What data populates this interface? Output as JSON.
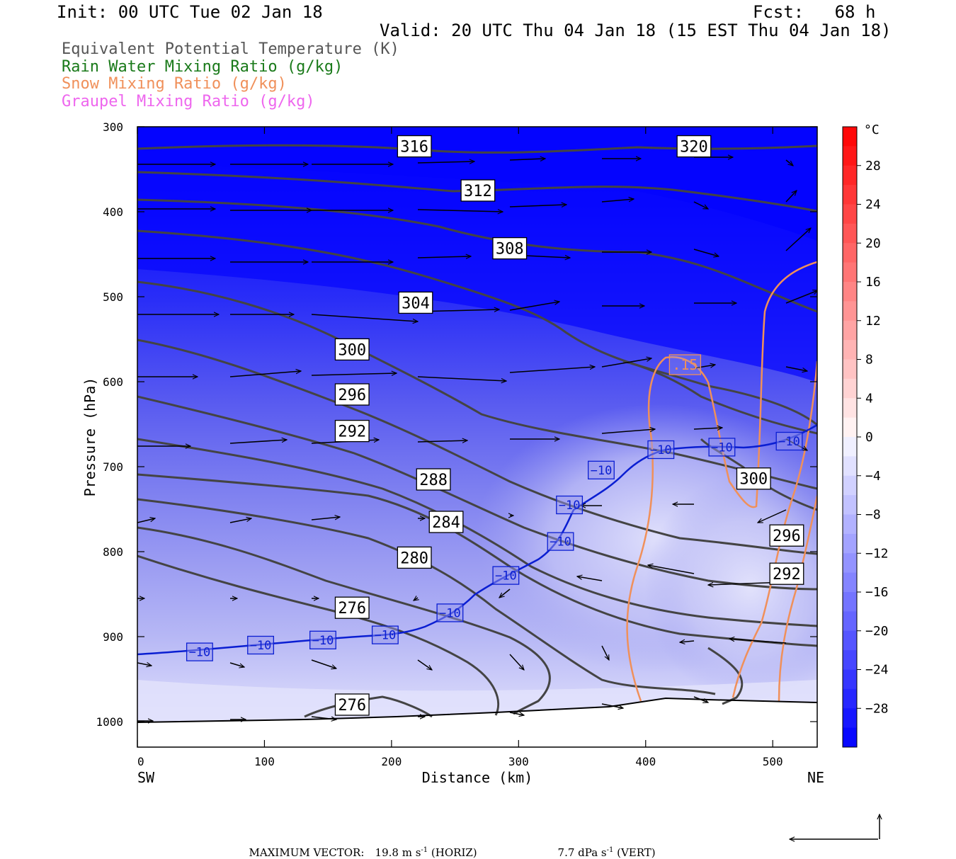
{
  "header": {
    "init": "Init: 00 UTC Tue 02 Jan 18",
    "fcst": "Fcst:   68 h",
    "valid": "Valid: 20 UTC Thu 04 Jan 18 (15 EST Thu 04 Jan 18)"
  },
  "legend": [
    {
      "text": "Equivalent Potential Temperature (K)",
      "color": "#555555"
    },
    {
      "text": "Rain Water Mixing Ratio (g/kg)",
      "color": "#1a7a1a"
    },
    {
      "text": "Snow Mixing Ratio (g/kg)",
      "color": "#f0905a"
    },
    {
      "text": "Graupel Mixing Ratio (g/kg)",
      "color": "#ee66ee"
    }
  ],
  "colors": {
    "theta_e": "#444444",
    "isotherm": "#0a1ed2",
    "snow": "#f0905a",
    "fill_cold": "#0000ff",
    "fill_mild": "#f4f4ff"
  },
  "chart_data": {
    "type": "contour",
    "xlabel": "Distance (km)",
    "ylabel": "Pressure (hPa)",
    "xlim": [
      0,
      535
    ],
    "ylim": [
      1030,
      300
    ],
    "x_ticks": [
      "0",
      "100",
      "200",
      "300",
      "400",
      "500"
    ],
    "y_ticks": [
      "300",
      "400",
      "500",
      "600",
      "700",
      "800",
      "900",
      "1000"
    ],
    "x_end_labels": {
      "left": "SW",
      "right": "NE"
    },
    "colorbar": {
      "unit": "°C",
      "tick_labels": [
        "28",
        "24",
        "20",
        "16",
        "12",
        "8",
        "4",
        "0",
        "-4",
        "-8",
        "-12",
        "-16",
        "-20",
        "-24",
        "-28"
      ],
      "range": [
        -32,
        32
      ],
      "step": 2
    },
    "theta_e_labels": [
      {
        "text": "316",
        "x": 218,
        "p": 323
      },
      {
        "text": "320",
        "x": 438,
        "p": 323
      },
      {
        "text": "312",
        "x": 268,
        "p": 375
      },
      {
        "text": "308",
        "x": 293,
        "p": 443
      },
      {
        "text": "304",
        "x": 219,
        "p": 507
      },
      {
        "text": "300",
        "x": 169,
        "p": 562
      },
      {
        "text": "296",
        "x": 169,
        "p": 615
      },
      {
        "text": "292",
        "x": 169,
        "p": 658
      },
      {
        "text": "288",
        "x": 233,
        "p": 715
      },
      {
        "text": "284",
        "x": 243,
        "p": 765
      },
      {
        "text": "280",
        "x": 218,
        "p": 807
      },
      {
        "text": "276",
        "x": 169,
        "p": 866
      },
      {
        "text": "276",
        "x": 169,
        "p": 980
      },
      {
        "text": "300",
        "x": 485,
        "p": 714
      },
      {
        "text": "296",
        "x": 511,
        "p": 781
      },
      {
        "text": "292",
        "x": 511,
        "p": 826
      }
    ],
    "isotherm_labels": [
      {
        "text": "−10",
        "x": 49,
        "p": 918
      },
      {
        "text": "−10",
        "x": 97,
        "p": 910
      },
      {
        "text": "−10",
        "x": 146,
        "p": 904
      },
      {
        "text": "−10",
        "x": 195,
        "p": 898
      },
      {
        "text": "−10",
        "x": 246,
        "p": 872
      },
      {
        "text": "−10",
        "x": 290,
        "p": 828
      },
      {
        "text": "−10",
        "x": 333,
        "p": 788
      },
      {
        "text": "−10",
        "x": 340,
        "p": 745
      },
      {
        "text": "−10",
        "x": 365,
        "p": 704
      },
      {
        "text": "−10",
        "x": 412,
        "p": 680
      },
      {
        "text": "−10",
        "x": 460,
        "p": 677
      },
      {
        "text": "−10",
        "x": 513,
        "p": 670
      }
    ],
    "snow_labels": [
      {
        "text": ".15",
        "x": 431,
        "p": 580
      }
    ]
  },
  "footer": {
    "max_vector_label": "MAXIMUM VECTOR:",
    "horiz_value": "19.8 m s",
    "horiz_unit": " (HORIZ)",
    "vert_value": "7.7 dPa s",
    "vert_unit": " (VERT)",
    "exponent": "-1"
  }
}
